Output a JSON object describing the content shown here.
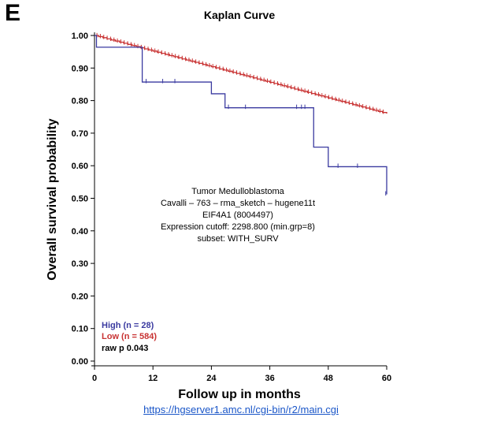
{
  "panel_label": "E",
  "source_url": "https://hgserver1.amc.nl/cgi-bin/r2/main.cgi",
  "info_lines": [
    "Tumor Medulloblastoma",
    "Cavalli – 763 – rma_sketch – hugene11t",
    "EIF4A1 (8004497)",
    "Expression cutoff: 2298.800 (min.grp=8)",
    "subset: WITH_SURV"
  ],
  "stat_label": "raw p 0.043",
  "chart_data": {
    "type": "line",
    "subtype": "kaplan-meier step",
    "title": "Kaplan Curve",
    "xlabel": "Follow up in months",
    "ylabel": "Overall survival probability",
    "xlim": [
      0,
      60
    ],
    "ylim": [
      0,
      1
    ],
    "x_ticks": [
      0,
      12,
      24,
      36,
      48,
      60
    ],
    "y_ticks": [
      0,
      0.1,
      0.2,
      0.3,
      0.4,
      0.5,
      0.6,
      0.7,
      0.8,
      0.9,
      1.0
    ],
    "y_tick_labels": [
      "0.00",
      "0.10",
      "0.20",
      "0.30",
      "0.40",
      "0.50",
      "0.60",
      "0.70",
      "0.80",
      "0.90",
      "1.00"
    ],
    "legend_position": "bottom-left",
    "grid": false,
    "series": [
      {
        "name": "High (n = 28)",
        "color": "#3a3aa0",
        "steps": [
          [
            0,
            1.0
          ],
          [
            0.4,
            0.964
          ],
          [
            9.8,
            0.857
          ],
          [
            24,
            0.821
          ],
          [
            26.8,
            0.778
          ],
          [
            45,
            0.657
          ],
          [
            48,
            0.597
          ],
          [
            60,
            0.512
          ]
        ],
        "censored": [
          [
            10.6,
            0.857
          ],
          [
            14.0,
            0.857
          ],
          [
            16.5,
            0.857
          ],
          [
            27.5,
            0.778
          ],
          [
            31.0,
            0.778
          ],
          [
            41.5,
            0.778
          ],
          [
            42.5,
            0.778
          ],
          [
            43.2,
            0.778
          ],
          [
            50.0,
            0.597
          ],
          [
            54.0,
            0.597
          ],
          [
            59.8,
            0.512
          ]
        ]
      },
      {
        "name": "Low (n = 584)",
        "color": "#c83232",
        "steps": [
          [
            0,
            1.0
          ],
          [
            60,
            0.76
          ]
        ],
        "censor_spacing_months": 0.7,
        "censor_start": 0.5,
        "censor_end": 59.5
      }
    ]
  }
}
